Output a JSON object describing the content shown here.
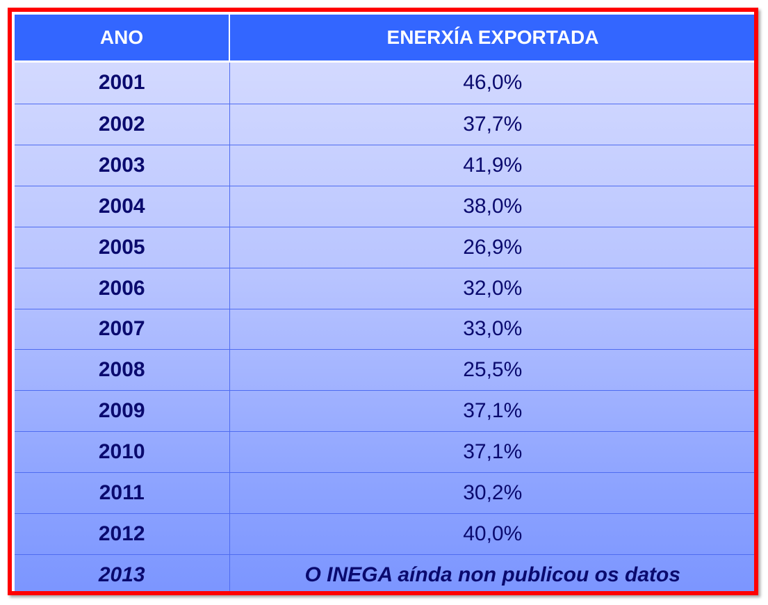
{
  "table": {
    "headers": {
      "year": "ANO",
      "value": "ENERXÍA EXPORTADA"
    },
    "rows": [
      {
        "year": "2001",
        "value": "46,0%"
      },
      {
        "year": "2002",
        "value": "37,7%"
      },
      {
        "year": "2003",
        "value": "41,9%"
      },
      {
        "year": "2004",
        "value": "38,0%"
      },
      {
        "year": "2005",
        "value": "26,9%"
      },
      {
        "year": "2006",
        "value": "32,0%"
      },
      {
        "year": "2007",
        "value": "33,0%"
      },
      {
        "year": "2008",
        "value": "25,5%"
      },
      {
        "year": "2009",
        "value": "37,1%"
      },
      {
        "year": "2010",
        "value": "37,1%"
      },
      {
        "year": "2011",
        "value": "30,2%"
      },
      {
        "year": "2012",
        "value": "40,0%"
      },
      {
        "year": "2013",
        "value": "O INEGA aínda non publicou os datos"
      }
    ]
  },
  "colors": {
    "frame_border": "#ff0000",
    "header_background": "#3366ff",
    "header_text": "#ffffff",
    "body_text": "#0a0a6e",
    "grid_lines": "#4f6cf0"
  }
}
